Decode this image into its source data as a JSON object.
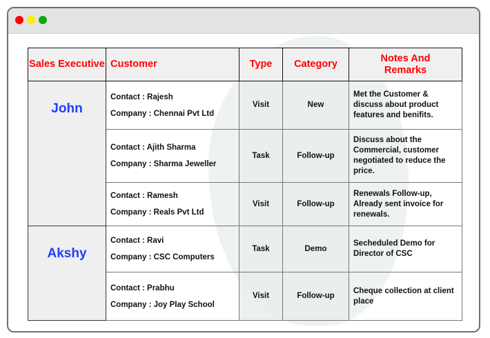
{
  "window": {
    "controls": [
      {
        "name": "close",
        "color": "#ff0000"
      },
      {
        "name": "minimize",
        "color": "#ffee00"
      },
      {
        "name": "maximize",
        "color": "#10a810"
      }
    ]
  },
  "table": {
    "headers": [
      "Sales Executive",
      "Customer",
      "Type",
      "Category",
      "Notes And Remarks"
    ],
    "groups": [
      {
        "executive": "John",
        "rows": [
          {
            "contact": "Contact : Rajesh",
            "company": "Company : Chennai Pvt Ltd",
            "type": "Visit",
            "category": "New",
            "notes": "Met the Customer & discuss about product features and benifits."
          },
          {
            "contact": "Contact : Ajith Sharma",
            "company": "Company : Sharma Jeweller",
            "type": "Task",
            "category": "Follow-up",
            "notes": "Discuss about the Commercial, customer negotiated to reduce the price."
          },
          {
            "contact": "Contact : Ramesh",
            "company": "Company : Reals Pvt Ltd",
            "type": "Visit",
            "category": "Follow-up",
            "notes": "Renewals Follow-up, Already sent invoice for renewals."
          }
        ]
      },
      {
        "executive": "Akshy",
        "rows": [
          {
            "contact": "Contact : Ravi",
            "company": "Company : CSC Computers",
            "type": "Task",
            "category": "Demo",
            "notes": "Secheduled Demo for Director of CSC"
          },
          {
            "contact": "Contact : Prabhu",
            "company": "Company : Joy Play School",
            "type": "Visit",
            "category": "Follow-up",
            "notes": "Cheque collection at client place"
          }
        ]
      }
    ]
  }
}
